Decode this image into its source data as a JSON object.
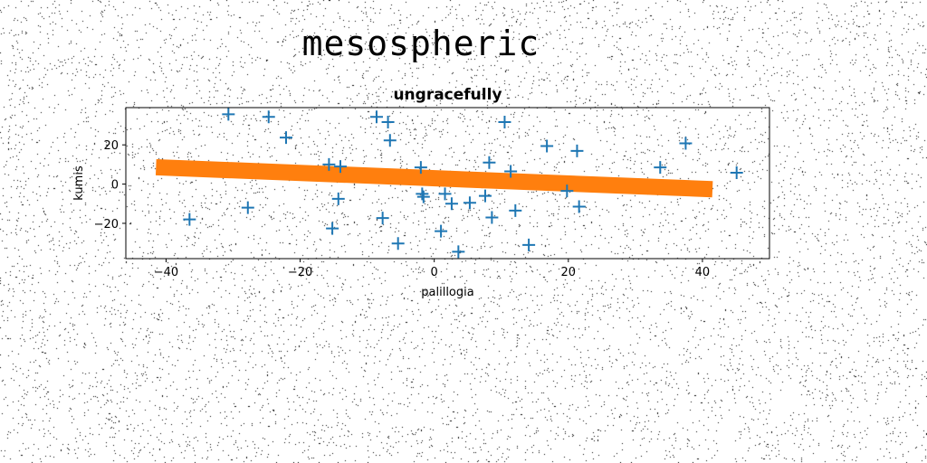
{
  "figure": {
    "suptitle": "mesospheric"
  },
  "chart_data": {
    "type": "scatter",
    "title": "ungracefully",
    "xlabel": "palillogia",
    "ylabel": "kumis",
    "xlim": [
      -46,
      50
    ],
    "ylim": [
      -38,
      39
    ],
    "xticks": [
      -40,
      -20,
      0,
      20,
      40
    ],
    "yticks": [
      -20,
      0,
      20
    ],
    "grid": false,
    "series": [
      {
        "marker": "+",
        "color": "#1f77b4",
        "points": [
          [
            -36.5,
            -18
          ],
          [
            -30.7,
            35.6
          ],
          [
            -27.8,
            -12
          ],
          [
            -24.7,
            34.3
          ],
          [
            -22.1,
            23.7
          ],
          [
            -15.7,
            10
          ],
          [
            -15.2,
            -22.6
          ],
          [
            -14.3,
            -7.5
          ],
          [
            -14,
            9
          ],
          [
            -8.6,
            34.3
          ],
          [
            -7.7,
            -17.3
          ],
          [
            -6.9,
            31.6
          ],
          [
            -6.6,
            22.3
          ],
          [
            -5.4,
            -30.3
          ],
          [
            -2,
            8.5
          ],
          [
            -1.8,
            -5
          ],
          [
            -1.6,
            -6.5
          ],
          [
            1,
            -24
          ],
          [
            1.6,
            -5
          ],
          [
            2.6,
            -10
          ],
          [
            3.6,
            -34.5
          ],
          [
            5.3,
            -9.5
          ],
          [
            7.6,
            -6
          ],
          [
            8.2,
            11
          ],
          [
            8.6,
            -17
          ],
          [
            10.5,
            31.6
          ],
          [
            11.4,
            6.5
          ],
          [
            12.1,
            -13.5
          ],
          [
            14.1,
            -31
          ],
          [
            16.8,
            19.4
          ],
          [
            19.8,
            -3.5
          ],
          [
            21.3,
            16.9
          ],
          [
            21.6,
            -11.5
          ],
          [
            33.7,
            8.5
          ],
          [
            37.5,
            20.8
          ],
          [
            45.1,
            5.8
          ]
        ]
      },
      {
        "type": "line",
        "color": "#ff7f0e",
        "points": [
          [
            -41.5,
            8.6
          ],
          [
            41.5,
            -2.6
          ]
        ]
      }
    ]
  }
}
